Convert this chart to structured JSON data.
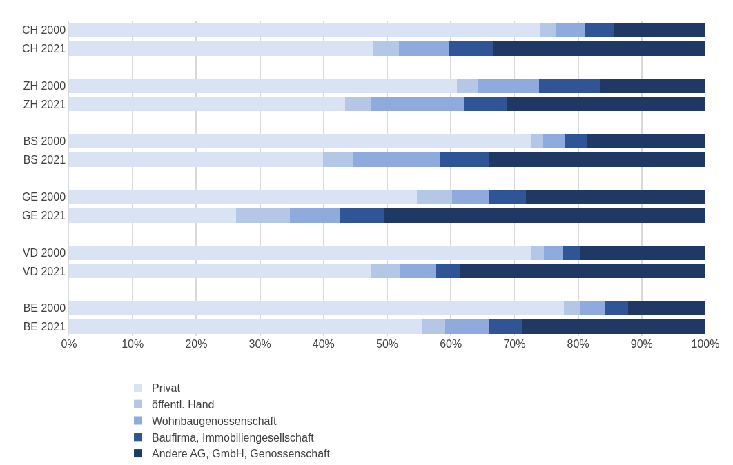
{
  "chart_data": {
    "type": "bar",
    "orientation": "horizontal",
    "stacked": true,
    "categories": [
      "CH 2000",
      "CH 2021",
      null,
      "ZH 2000",
      "ZH 2021",
      null,
      "BS 2000",
      "BS 2021",
      null,
      "GE 2000",
      "GE 2021",
      null,
      "VD 2000",
      "VD 2021",
      null,
      "BE 2000",
      "BE 2021"
    ],
    "series": [
      {
        "name": "Privat",
        "color": "#dae3f3",
        "values": [
          74.1,
          47.7,
          null,
          60.9,
          43.4,
          null,
          72.7,
          39.9,
          null,
          54.7,
          26.2,
          null,
          72.6,
          47.5,
          null,
          77.8,
          55.4
        ]
      },
      {
        "name": "öffentl. Hand",
        "color": "#b4c7e7",
        "values": [
          2.4,
          4.1,
          null,
          3.4,
          4.0,
          null,
          1.7,
          4.7,
          null,
          5.5,
          8.5,
          null,
          2.0,
          4.6,
          null,
          2.6,
          3.7
        ]
      },
      {
        "name": "Wohnbaugenossenschaft",
        "color": "#8faadc",
        "values": [
          4.6,
          8.0,
          null,
          9.6,
          14.6,
          null,
          3.5,
          13.7,
          null,
          5.8,
          7.8,
          null,
          2.9,
          5.6,
          null,
          3.8,
          7.0
        ]
      },
      {
        "name": "Baufirma, Immobiliengesellschaft",
        "color": "#2f5597",
        "values": [
          4.5,
          6.8,
          null,
          9.6,
          6.8,
          null,
          3.6,
          7.7,
          null,
          5.8,
          7.0,
          null,
          2.9,
          3.7,
          null,
          3.6,
          5.1
        ]
      },
      {
        "name": "Andere AG, GmbH, Genossenschaft",
        "color": "#203864",
        "values": [
          14.4,
          33.3,
          null,
          16.5,
          31.2,
          null,
          18.5,
          34.0,
          null,
          28.2,
          50.5,
          null,
          19.6,
          38.5,
          null,
          12.2,
          28.7
        ]
      }
    ],
    "xlim": [
      0,
      100
    ],
    "xticks": [
      {
        "value": 0,
        "label": "0%"
      },
      {
        "value": 10,
        "label": "10%"
      },
      {
        "value": 20,
        "label": "20%"
      },
      {
        "value": 30,
        "label": "30%"
      },
      {
        "value": 40,
        "label": "40%"
      },
      {
        "value": 50,
        "label": "50%"
      },
      {
        "value": 60,
        "label": "60%"
      },
      {
        "value": 70,
        "label": "70%"
      },
      {
        "value": 80,
        "label": "80%"
      },
      {
        "value": 90,
        "label": "90%"
      },
      {
        "value": 100,
        "label": "100%"
      }
    ],
    "grid": "x",
    "legend": "bottom"
  }
}
